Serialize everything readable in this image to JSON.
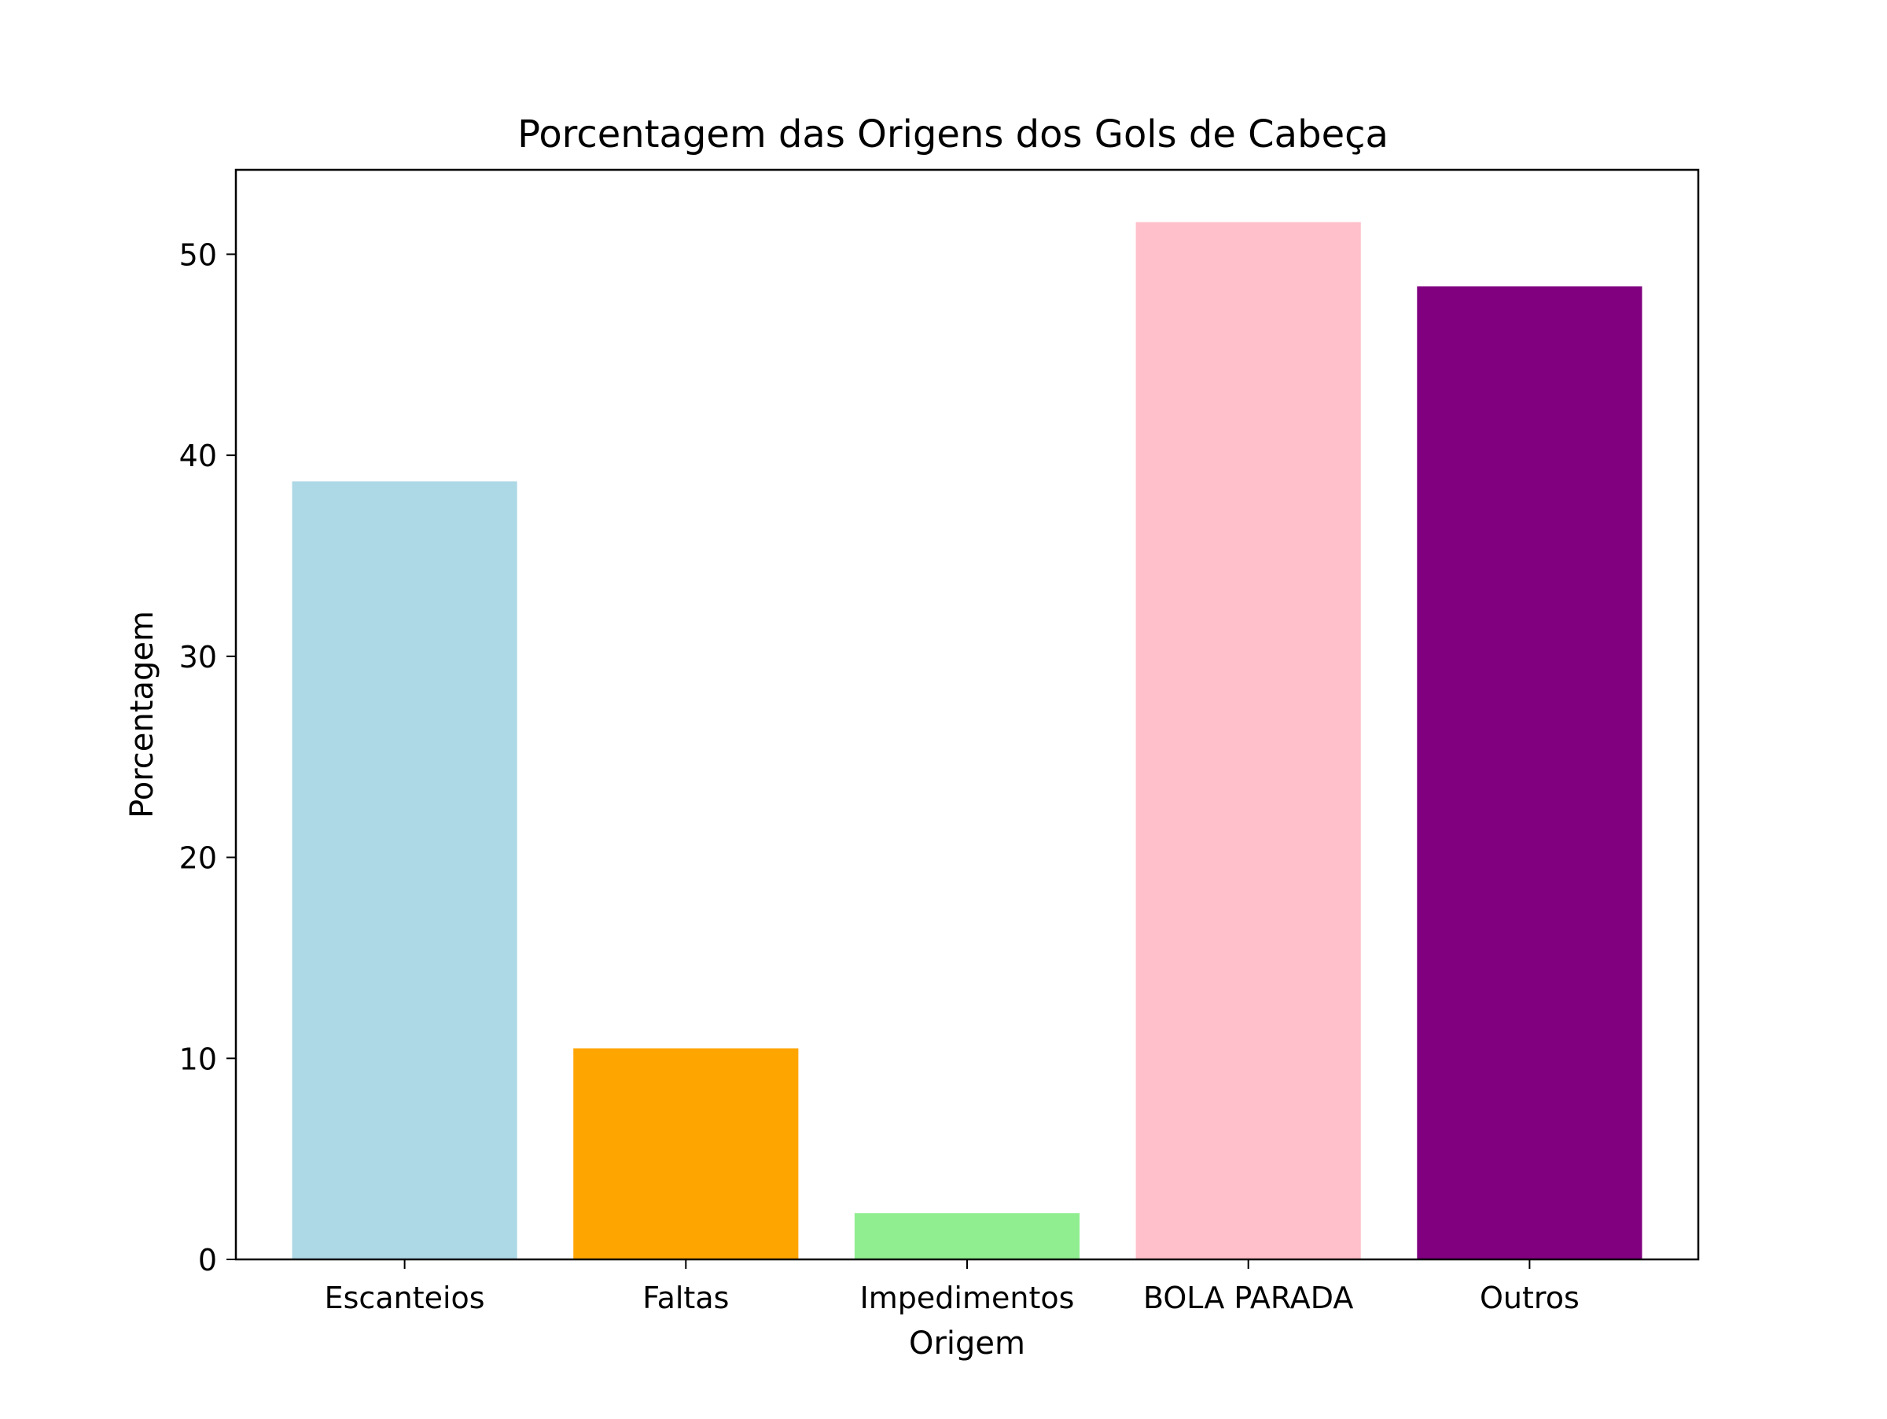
{
  "chart_data": {
    "type": "bar",
    "title": "Porcentagem das Origens dos Gols de Cabeça",
    "xlabel": "Origem",
    "ylabel": "Porcentagem",
    "categories": [
      "Escanteios",
      "Faltas",
      "Impedimentos",
      "BOLA PARADA",
      "Outros"
    ],
    "values": [
      38.7,
      10.5,
      2.3,
      51.6,
      48.4
    ],
    "colors": [
      "#add8e6",
      "#ffa500",
      "#90ee90",
      "#ffc0cb",
      "#800080"
    ],
    "ylim": [
      0,
      54.2
    ],
    "yticks": [
      0,
      10,
      20,
      30,
      40,
      50
    ],
    "grid": false,
    "legend": "none"
  }
}
